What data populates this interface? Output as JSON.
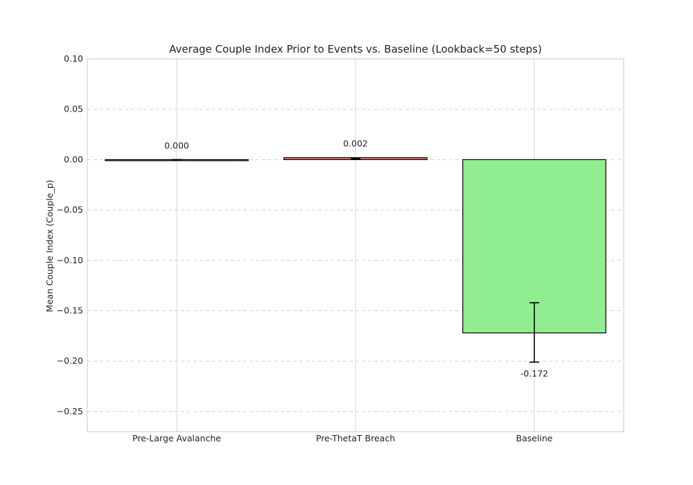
{
  "chart_data": {
    "type": "bar",
    "title": "Average Couple Index Prior to Events vs. Baseline (Lookback=50 steps)",
    "xlabel": "",
    "ylabel": "Mean Couple Index (Couple_p)",
    "categories": [
      "Pre-Large Avalanche",
      "Pre-ThetaT Breach",
      "Baseline"
    ],
    "values": [
      0.0,
      0.002,
      -0.172
    ],
    "error_bars": [
      {
        "lower": 0.0,
        "upper": 0.0
      },
      {
        "lower": 0.001,
        "upper": 0.001
      },
      {
        "lower": -0.201,
        "upper": -0.142
      }
    ],
    "value_labels": [
      "0.000",
      "0.002",
      "-0.172"
    ],
    "bar_colors": [
      "#FA8072",
      "#FA8072",
      "#90EE90"
    ],
    "edge_color": "#000000",
    "ylim": [
      -0.27,
      0.1
    ],
    "yticks": [
      0.1,
      0.05,
      0.0,
      -0.05,
      -0.1,
      -0.15,
      -0.2,
      -0.25
    ],
    "ytick_labels": [
      "0.10",
      "0.05",
      "0.00",
      "−0.05",
      "−0.10",
      "−0.15",
      "−0.20",
      "−0.25"
    ],
    "grid": true,
    "legend": "none"
  }
}
